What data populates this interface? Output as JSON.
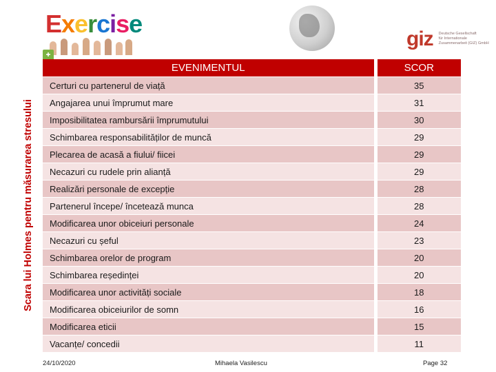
{
  "side_title": "Scara lui Holmes pentru măsurarea stresului",
  "banner": {
    "word": "Exercise"
  },
  "giz": {
    "logo": "giz",
    "sub_lines": [
      "Deutsche Gesellschaft",
      "für Internationale",
      "Zusammenarbeit (GIZ) GmbH"
    ]
  },
  "colors": {
    "accent": "#c00000",
    "row_dark": "#e8c6c6",
    "row_light": "#f5e3e3"
  },
  "table": {
    "headers": [
      "EVENIMENTUL",
      "SCOR"
    ],
    "rows": [
      {
        "event": "Certuri cu partenerul de viață",
        "score": "35"
      },
      {
        "event": "Angajarea unui împrumut mare",
        "score": "31"
      },
      {
        "event": "Imposibilitatea rambursării împrumutului",
        "score": "30"
      },
      {
        "event": "Schimbarea responsabilităților de muncă",
        "score": "29"
      },
      {
        "event": "Plecarea de acasă a fiului/ fiicei",
        "score": "29"
      },
      {
        "event": "Necazuri cu rudele prin alianță",
        "score": "29"
      },
      {
        "event": "Realizări personale de excepție",
        "score": "28"
      },
      {
        "event": "Partenerul începe/ încetează munca",
        "score": "28"
      },
      {
        "event": "Modificarea unor obiceiuri personale",
        "score": "24"
      },
      {
        "event": "Necazuri cu șeful",
        "score": "23"
      },
      {
        "event": "Schimbarea orelor de program",
        "score": "20"
      },
      {
        "event": "Schimbarea reședinței",
        "score": "20"
      },
      {
        "event": "Modificarea unor activități sociale",
        "score": "18"
      },
      {
        "event": "Modificarea obiceiurilor de somn",
        "score": "16"
      },
      {
        "event": "Modificarea eticii",
        "score": "15"
      },
      {
        "event": "Vacanțe/ concedii",
        "score": "11"
      }
    ]
  },
  "footer": {
    "date": "24/10/2020",
    "author": "Mihaela Vasilescu",
    "page": "Page 32"
  }
}
